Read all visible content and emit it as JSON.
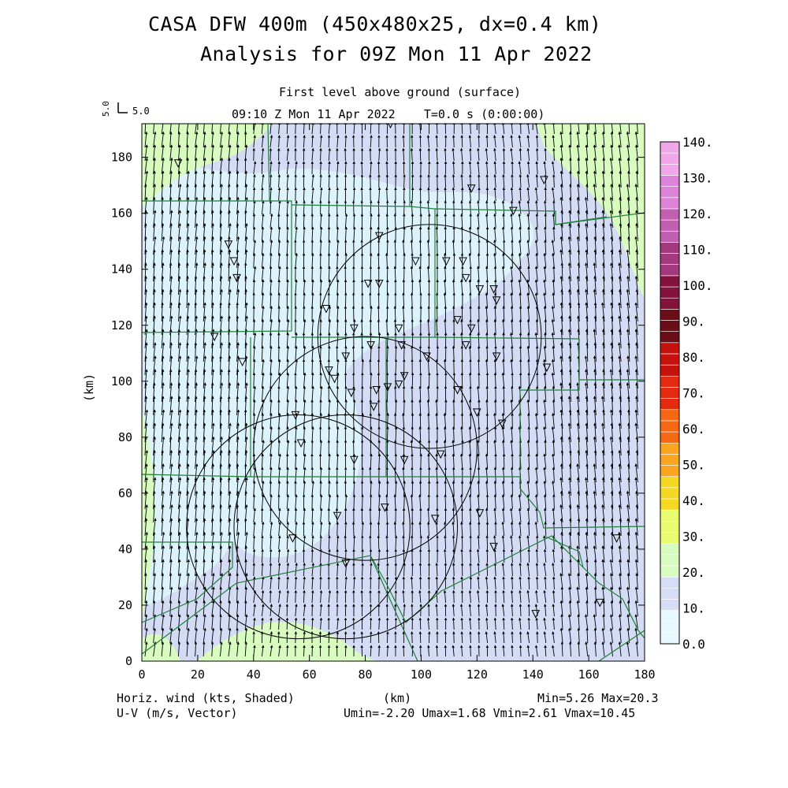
{
  "header": {
    "title_line1": "CASA DFW 400m (450x480x25, dx=0.4 km)",
    "title_line2": "Analysis for 09Z Mon 11 Apr 2022",
    "subtitle_level": "First level above ground (surface)",
    "subtitle_time": "09:10 Z Mon 11 Apr 2022    T=0.0 s (0:00:00)",
    "ref_vector_tick": "5.0",
    "ref_vector_label": "5.0"
  },
  "footer": {
    "left_line1": "Horiz. wind (kts, Shaded)",
    "left_line2": "U-V (m/s, Vector)",
    "xlabel": "(km)",
    "stats_line1": "Min=5.26 Max=20.3",
    "stats_line2": "Umin=-2.20 Umax=1.68 Vmin=2.61 Vmax=10.45"
  },
  "colors": {
    "shade_0_10": "#ddf3fb",
    "shade_10_20": "#d4dcf5",
    "shade_20_30": "#d8fbc0",
    "vector": "#000000",
    "county_lines": "#1f7f3a",
    "radar_rings": "#000000"
  },
  "chart_data": {
    "type": "heatmap",
    "title": "CASA DFW 400m (450x480x25, dx=0.4 km)",
    "xlabel": "(km)",
    "ylabel": "(km)",
    "xlim": [
      0,
      180
    ],
    "ylim": [
      0,
      192
    ],
    "x_ticks": [
      0,
      20,
      40,
      60,
      80,
      100,
      120,
      140,
      160,
      180
    ],
    "y_ticks": [
      0,
      20,
      40,
      60,
      80,
      100,
      120,
      140,
      160,
      180
    ],
    "field": "Horiz. wind (kts)",
    "field_min": 5.26,
    "field_max": 20.3,
    "colorbar": {
      "values": [
        0,
        10,
        20,
        30,
        40,
        50,
        60,
        70,
        80,
        90,
        100,
        110,
        120,
        130,
        140
      ],
      "labels": [
        "0.0",
        "10.",
        "20.",
        "30.",
        "40.",
        "50.",
        "60.",
        "70.",
        "80.",
        "90.",
        "100.",
        "110.",
        "120.",
        "130.",
        "140."
      ],
      "colors": [
        "#e6f8fd",
        "#d6def6",
        "#d8fbc0",
        "#e9fb6e",
        "#f5d821",
        "#fba620",
        "#f56814",
        "#e62a11",
        "#c6120d",
        "#6a0e18",
        "#84133b",
        "#a23a7d",
        "#c15fb1",
        "#de84d8",
        "#f0a8ea"
      ]
    },
    "vectors": {
      "units": "m/s",
      "umin": -2.2,
      "umax": 1.68,
      "vmin": 2.61,
      "vmax": 10.45
    },
    "radar_rings_km": [
      {
        "cx": 73,
        "cy": 48,
        "r": 40
      },
      {
        "cx": 56,
        "cy": 48,
        "r": 40
      },
      {
        "cx": 80,
        "cy": 76,
        "r": 40
      },
      {
        "cx": 103,
        "cy": 116,
        "r": 40
      }
    ],
    "stations_km": [
      [
        13,
        178
      ],
      [
        118,
        169
      ],
      [
        144,
        172
      ],
      [
        133,
        161
      ],
      [
        85,
        152
      ],
      [
        31,
        149
      ],
      [
        33,
        143
      ],
      [
        98,
        143
      ],
      [
        109,
        143
      ],
      [
        115,
        143
      ],
      [
        34,
        137
      ],
      [
        81,
        135
      ],
      [
        85,
        135
      ],
      [
        116,
        137
      ],
      [
        121,
        133
      ],
      [
        126,
        133
      ],
      [
        127,
        129
      ],
      [
        113,
        122
      ],
      [
        76,
        119
      ],
      [
        92,
        119
      ],
      [
        118,
        119
      ],
      [
        66,
        126
      ],
      [
        26,
        116
      ],
      [
        73,
        109
      ],
      [
        82,
        113
      ],
      [
        93,
        113
      ],
      [
        102,
        109
      ],
      [
        116,
        113
      ],
      [
        127,
        109
      ],
      [
        145,
        105
      ],
      [
        36,
        107
      ],
      [
        67,
        104
      ],
      [
        69,
        101
      ],
      [
        75,
        96
      ],
      [
        84,
        97
      ],
      [
        88,
        98
      ],
      [
        92,
        99
      ],
      [
        94,
        102
      ],
      [
        113,
        97
      ],
      [
        120,
        89
      ],
      [
        83,
        91
      ],
      [
        55,
        88
      ],
      [
        129,
        85
      ],
      [
        57,
        78
      ],
      [
        76,
        72
      ],
      [
        94,
        72
      ],
      [
        107,
        74
      ],
      [
        87,
        55
      ],
      [
        70,
        52
      ],
      [
        105,
        51
      ],
      [
        121,
        53
      ],
      [
        54,
        44
      ],
      [
        126,
        41
      ],
      [
        170,
        44
      ],
      [
        73,
        35
      ],
      [
        141,
        17
      ],
      [
        164,
        21
      ],
      [
        89,
        192
      ]
    ]
  }
}
